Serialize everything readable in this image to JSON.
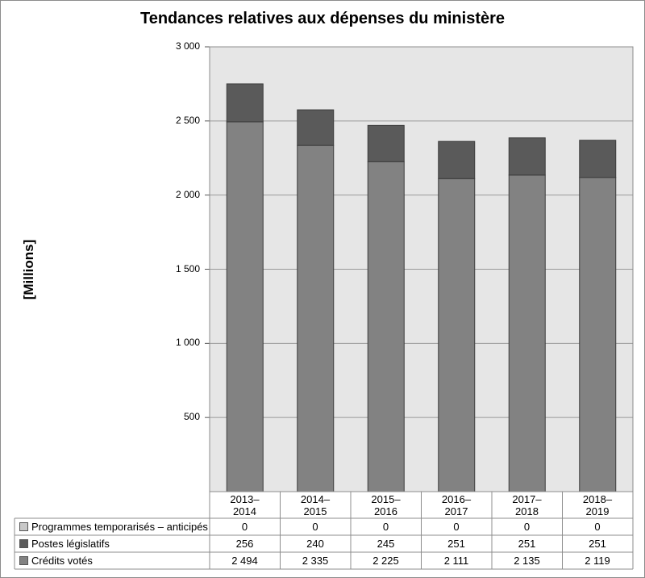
{
  "chart_data": {
    "type": "bar",
    "stacked": true,
    "title": "Tendances relatives aux dépenses du ministère",
    "ylabel": "[Millions]",
    "xlabel": "",
    "ylim": [
      0,
      3000
    ],
    "yticks": [
      500,
      1000,
      1500,
      2000,
      2500,
      3000
    ],
    "ytick_labels": [
      "500",
      "1 000",
      "1 500",
      "2 000",
      "2 500",
      "3 000"
    ],
    "categories": [
      "2013–2014",
      "2014–2015",
      "2015–2016",
      "2016–2017",
      "2017–2018",
      "2018–2019"
    ],
    "category_lines": [
      [
        "2013–",
        "2014"
      ],
      [
        "2014–",
        "2015"
      ],
      [
        "2015–",
        "2016"
      ],
      [
        "2016–",
        "2017"
      ],
      [
        "2017–",
        "2018"
      ],
      [
        "2018–",
        "2019"
      ]
    ],
    "series": [
      {
        "name": "Programmes temporarisés – anticipés",
        "values": [
          0,
          0,
          0,
          0,
          0,
          0
        ],
        "labels": [
          "0",
          "0",
          "0",
          "0",
          "0",
          "0"
        ],
        "color": "#c8c8c8"
      },
      {
        "name": "Postes législatifs",
        "values": [
          256,
          240,
          245,
          251,
          251,
          251
        ],
        "labels": [
          "256",
          "240",
          "245",
          "251",
          "251",
          "251"
        ],
        "color": "#5a5a5a"
      },
      {
        "name": "Crédits votés",
        "values": [
          2494,
          2335,
          2225,
          2111,
          2135,
          2119
        ],
        "labels": [
          "2 494",
          "2 335",
          "2 225",
          "2 111",
          "2 135",
          "2 119"
        ],
        "color": "#828282"
      }
    ],
    "stack_order": [
      "Crédits votés",
      "Postes législatifs",
      "Programmes temporarisés – anticipés"
    ],
    "grid": true,
    "legend": "table-bottom"
  },
  "colors": {
    "plot_bg": "#e6e6e6",
    "grid": "#9a9a9a",
    "border": "#8c8c8c"
  }
}
